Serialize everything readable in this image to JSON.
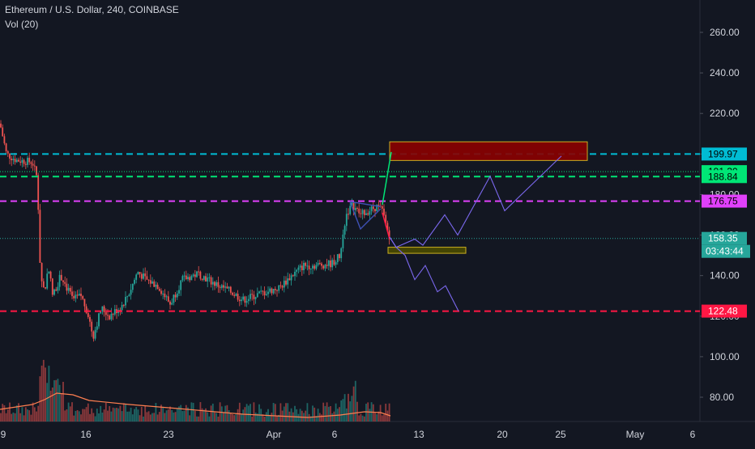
{
  "header": {
    "title": "Ethereum / U.S. Dollar, 240, COINBASE",
    "volume_label": "Vol (20)"
  },
  "colors": {
    "background": "#131722",
    "up": "#26a69a",
    "down": "#ef5350",
    "text": "#d1d4dc",
    "grid": "#1e222d",
    "volume_ma": "#ff7f50",
    "projection": "#7b68ee"
  },
  "chart_data": {
    "type": "candlestick",
    "y_axis": {
      "range": [
        66,
        276
      ],
      "ticks": [
        80,
        100,
        120,
        140,
        160,
        180,
        200,
        220,
        240,
        260
      ],
      "tick_labels": [
        "80.00",
        "100.00",
        "120.00",
        "140.00",
        "160.00",
        "180.00",
        "200.00",
        "220.00",
        "240.00",
        "260.00"
      ]
    },
    "x_axis": {
      "labels": [
        "9",
        "16",
        "23",
        "Apr",
        "6",
        "13",
        "20",
        "25",
        "May",
        "6"
      ]
    },
    "horizontal_levels": [
      {
        "value": 199.97,
        "label": "199.97",
        "color": "#00bcd4",
        "style": "dashed"
      },
      {
        "value": 191.3,
        "label": "191.30",
        "color": "#00e676",
        "style": "dotted"
      },
      {
        "value": 188.84,
        "label": "188.84",
        "color": "#00e676",
        "style": "dashed"
      },
      {
        "value": 176.75,
        "label": "176.75",
        "color": "#e040fb",
        "style": "dashed"
      },
      {
        "value": 158.35,
        "label": "158.35",
        "color": "#26a69a",
        "style": "dotted"
      },
      {
        "value": 122.48,
        "label": "122.48",
        "color": "#ff1744",
        "style": "dashed"
      }
    ],
    "countdown": "03:43:44",
    "zones": [
      {
        "name": "target-zone",
        "y_top": 206.0,
        "y_bottom": 196.8,
        "fill": "#8b0000",
        "stroke": "#e0c020"
      },
      {
        "name": "support-zone",
        "y_top": 154.0,
        "y_bottom": 151.0,
        "fill": "#4a4a00",
        "stroke": "#e0c020"
      }
    ],
    "projection_upper": [
      159,
      154,
      158,
      155,
      170,
      160,
      189,
      172,
      199
    ],
    "projection_lower": [
      159,
      154,
      150,
      138,
      145,
      132,
      135,
      122.5
    ],
    "breakout_line": [
      175,
      201
    ],
    "drop_line": [
      171,
      158
    ]
  }
}
